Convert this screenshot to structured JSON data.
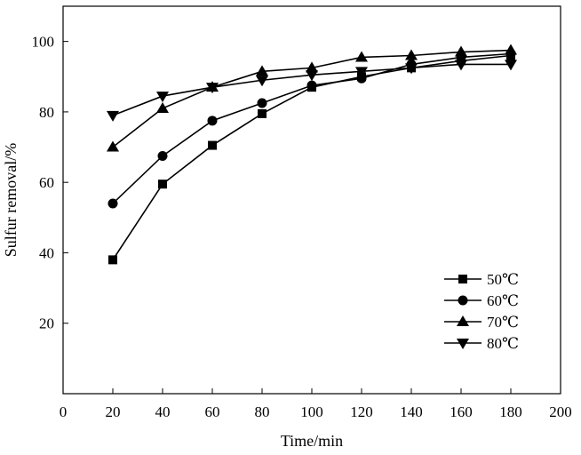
{
  "chart_data": {
    "type": "line",
    "title": "",
    "xlabel": "Time/min",
    "ylabel": "Sulfur removal/%",
    "xlim": [
      0,
      200
    ],
    "ylim": [
      0,
      110
    ],
    "xticks": [
      0,
      20,
      40,
      60,
      80,
      100,
      120,
      140,
      160,
      180,
      200
    ],
    "yticks": [
      20,
      40,
      60,
      80,
      100
    ],
    "grid": false,
    "legend_position": "bottom-right",
    "x": [
      20,
      40,
      60,
      80,
      100,
      120,
      140,
      160,
      180
    ],
    "series": [
      {
        "name": "50℃",
        "marker": "square",
        "values": [
          38,
          59.5,
          70.5,
          79.5,
          87,
          90,
          92.5,
          94.5,
          96
        ]
      },
      {
        "name": "60℃",
        "marker": "circle",
        "values": [
          54,
          67.5,
          77.5,
          82.5,
          87.5,
          89.5,
          93.5,
          95.5,
          96.5
        ]
      },
      {
        "name": "70℃",
        "marker": "triangle-up",
        "values": [
          70,
          81,
          87,
          91.5,
          92.5,
          95.5,
          96,
          97,
          97.5
        ]
      },
      {
        "name": "80℃",
        "marker": "triangle-down",
        "values": [
          79,
          84.5,
          87,
          89,
          90.5,
          91.5,
          92.5,
          93.5,
          93.5
        ]
      }
    ]
  }
}
